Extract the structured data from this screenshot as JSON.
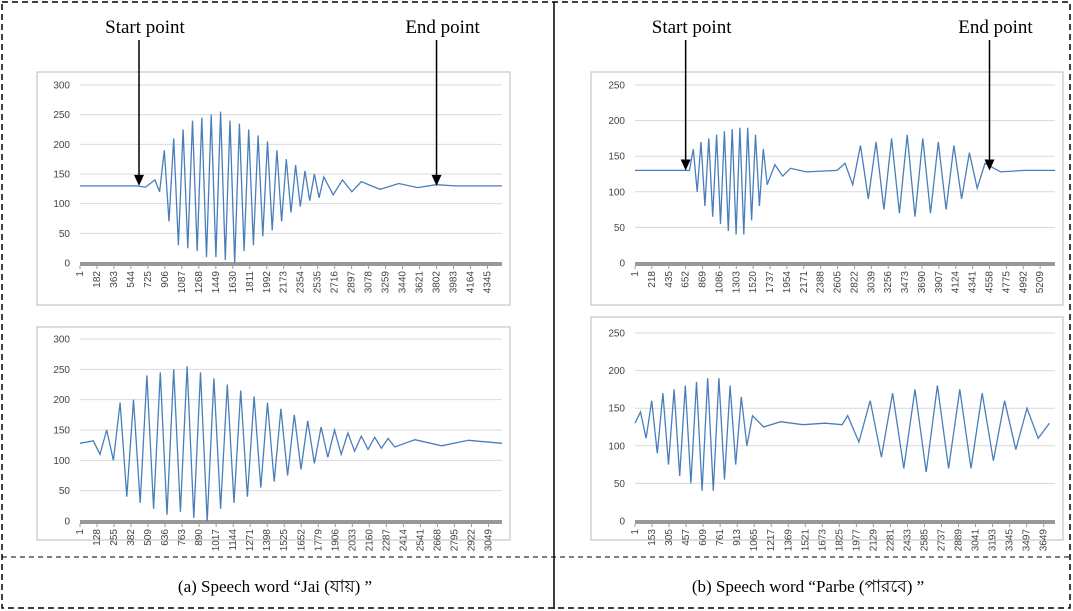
{
  "chart_data": [
    {
      "type": "line",
      "color": "#4a7ebb",
      "grid": true,
      "xlim": [
        1,
        4500
      ],
      "ylim": [
        0,
        300
      ],
      "yticks": [
        0,
        50,
        100,
        150,
        200,
        250,
        300
      ],
      "xticks": [
        1,
        182,
        363,
        544,
        725,
        906,
        1087,
        1268,
        1449,
        1630,
        1811,
        1992,
        2173,
        2354,
        2535,
        2716,
        2897,
        3078,
        3259,
        3440,
        3621,
        3802,
        3983,
        4164,
        4345
      ],
      "x": [
        1,
        600,
        700,
        800,
        850,
        900,
        950,
        1000,
        1050,
        1100,
        1150,
        1200,
        1250,
        1300,
        1350,
        1400,
        1450,
        1500,
        1550,
        1600,
        1650,
        1700,
        1750,
        1800,
        1850,
        1900,
        1950,
        2000,
        2050,
        2100,
        2150,
        2200,
        2250,
        2300,
        2350,
        2400,
        2450,
        2500,
        2550,
        2600,
        2700,
        2800,
        2900,
        3000,
        3200,
        3400,
        3600,
        3800,
        4000,
        4500
      ],
      "values": [
        130,
        130,
        128,
        140,
        120,
        190,
        70,
        210,
        30,
        225,
        25,
        240,
        20,
        245,
        10,
        250,
        10,
        255,
        5,
        240,
        0,
        235,
        20,
        225,
        30,
        215,
        45,
        205,
        55,
        190,
        70,
        175,
        85,
        165,
        95,
        155,
        105,
        150,
        110,
        145,
        115,
        140,
        120,
        137,
        124,
        134,
        127,
        132,
        130,
        130
      ],
      "annotations": [
        {
          "text": "Start point",
          "x": 630,
          "y": 130
        },
        {
          "text": "End point",
          "x": 3802,
          "y": 130
        }
      ]
    },
    {
      "type": "line",
      "color": "#4a7ebb",
      "grid": true,
      "xlim": [
        1,
        3150
      ],
      "ylim": [
        0,
        300
      ],
      "yticks": [
        0,
        50,
        100,
        150,
        200,
        250,
        300
      ],
      "xticks": [
        1,
        128,
        255,
        382,
        509,
        636,
        763,
        890,
        1017,
        1144,
        1271,
        1398,
        1525,
        1652,
        1779,
        1906,
        2033,
        2160,
        2287,
        2414,
        2541,
        2668,
        2795,
        2922,
        3049
      ],
      "x": [
        1,
        100,
        150,
        200,
        250,
        300,
        350,
        400,
        450,
        500,
        550,
        600,
        650,
        700,
        750,
        800,
        850,
        900,
        950,
        1000,
        1050,
        1100,
        1150,
        1200,
        1250,
        1300,
        1350,
        1400,
        1450,
        1500,
        1550,
        1600,
        1650,
        1700,
        1750,
        1800,
        1850,
        1900,
        1950,
        2000,
        2050,
        2100,
        2150,
        2200,
        2250,
        2300,
        2350,
        2500,
        2700,
        2900,
        3150
      ],
      "values": [
        128,
        132,
        110,
        150,
        100,
        195,
        40,
        200,
        30,
        240,
        20,
        245,
        10,
        250,
        15,
        255,
        5,
        245,
        0,
        235,
        20,
        225,
        30,
        215,
        40,
        205,
        55,
        195,
        65,
        185,
        75,
        175,
        85,
        165,
        95,
        155,
        105,
        150,
        110,
        145,
        115,
        140,
        118,
        138,
        120,
        136,
        122,
        134,
        124,
        133,
        128
      ]
    },
    {
      "type": "line",
      "color": "#4a7ebb",
      "grid": true,
      "xlim": [
        1,
        5400
      ],
      "ylim": [
        0,
        250
      ],
      "yticks": [
        0,
        50,
        100,
        150,
        200,
        250
      ],
      "xticks": [
        1,
        218,
        435,
        652,
        869,
        1086,
        1303,
        1520,
        1737,
        1954,
        2171,
        2388,
        2605,
        2822,
        3039,
        3256,
        3473,
        3690,
        3907,
        4124,
        4341,
        4558,
        4775,
        4992,
        5209
      ],
      "x": [
        1,
        600,
        700,
        750,
        800,
        850,
        900,
        950,
        1000,
        1050,
        1100,
        1150,
        1200,
        1250,
        1300,
        1350,
        1400,
        1450,
        1500,
        1550,
        1600,
        1650,
        1700,
        1800,
        1900,
        2000,
        2200,
        2600,
        2700,
        2800,
        2900,
        3000,
        3100,
        3200,
        3300,
        3400,
        3500,
        3600,
        3700,
        3800,
        3900,
        4000,
        4100,
        4200,
        4300,
        4400,
        4500,
        4700,
        5000,
        5400
      ],
      "values": [
        130,
        130,
        130,
        160,
        100,
        170,
        80,
        175,
        65,
        180,
        55,
        185,
        45,
        188,
        40,
        190,
        40,
        190,
        60,
        180,
        80,
        160,
        110,
        138,
        122,
        133,
        128,
        130,
        140,
        110,
        165,
        90,
        170,
        75,
        175,
        70,
        180,
        65,
        175,
        70,
        170,
        75,
        165,
        90,
        155,
        105,
        140,
        128,
        130,
        130
      ],
      "annotations": [
        {
          "text": "Start point",
          "x": 652,
          "y": 130
        },
        {
          "text": "End point",
          "x": 4558,
          "y": 130
        }
      ]
    },
    {
      "type": "line",
      "color": "#4a7ebb",
      "grid": true,
      "xlim": [
        1,
        3750
      ],
      "ylim": [
        0,
        250
      ],
      "yticks": [
        0,
        50,
        100,
        150,
        200,
        250
      ],
      "xticks": [
        1,
        153,
        305,
        457,
        609,
        761,
        913,
        1065,
        1217,
        1369,
        1521,
        1673,
        1825,
        1977,
        2129,
        2281,
        2433,
        2585,
        2737,
        2889,
        3041,
        3193,
        3345,
        3497,
        3649
      ],
      "x": [
        1,
        50,
        100,
        150,
        200,
        250,
        300,
        350,
        400,
        450,
        500,
        550,
        600,
        650,
        700,
        750,
        800,
        850,
        900,
        950,
        1000,
        1050,
        1150,
        1300,
        1500,
        1700,
        1850,
        1900,
        2000,
        2100,
        2200,
        2300,
        2400,
        2500,
        2600,
        2700,
        2800,
        2900,
        3000,
        3100,
        3200,
        3300,
        3400,
        3500,
        3600,
        3700
      ],
      "values": [
        130,
        145,
        110,
        160,
        90,
        170,
        75,
        175,
        60,
        180,
        50,
        185,
        40,
        190,
        40,
        190,
        55,
        180,
        75,
        165,
        100,
        140,
        125,
        132,
        128,
        130,
        128,
        140,
        105,
        160,
        85,
        170,
        70,
        175,
        65,
        180,
        70,
        175,
        70,
        170,
        80,
        160,
        95,
        150,
        110,
        130
      ]
    }
  ],
  "captions": [
    "(a)  Speech word “Jai (যায়) ”",
    "(b) Speech word “Parbe (পারবে) ”"
  ]
}
